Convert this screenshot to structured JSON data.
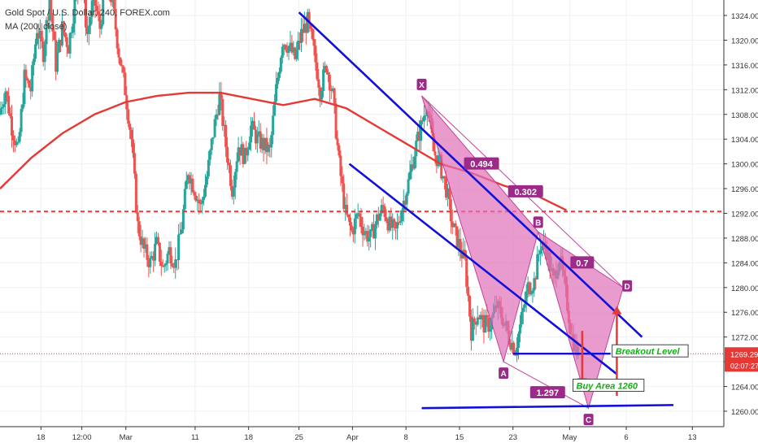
{
  "legend": {
    "title": "Gold Spot / U.S. Dollar, 240, FOREX.com",
    "indicator": "MA (200, close)"
  },
  "colors": {
    "up": "#26a69a",
    "down": "#ef5350",
    "ma": "#e53935",
    "channel": "#1010d8",
    "pattern_fill": "#e070b8",
    "pattern_label": "#9c2a88",
    "hline": "#e53935",
    "price_tag": "#e53935",
    "green_text": "#11b011"
  },
  "chart_data": {
    "type": "candlestick",
    "symbol": "Gold Spot / U.S. Dollar",
    "timeframe": "240",
    "ylim": [
      1257.5,
      1326.5
    ],
    "y_ticks": [
      1260,
      1264,
      1268,
      1272,
      1276,
      1280,
      1284,
      1288,
      1292,
      1296,
      1300,
      1304,
      1308,
      1312,
      1316,
      1320,
      1324
    ],
    "x_range": [
      0,
      115
    ],
    "x_ticks": [
      {
        "x": 6.5,
        "label": "18"
      },
      {
        "x": 13,
        "label": "12:00"
      },
      {
        "x": 20,
        "label": "Mar"
      },
      {
        "x": 31,
        "label": "11"
      },
      {
        "x": 39.5,
        "label": "18"
      },
      {
        "x": 47.5,
        "label": "25"
      },
      {
        "x": 56,
        "label": "Apr"
      },
      {
        "x": 64.5,
        "label": "8"
      },
      {
        "x": 73,
        "label": "15"
      },
      {
        "x": 81.5,
        "label": "23"
      },
      {
        "x": 90.5,
        "label": "May"
      },
      {
        "x": 99.5,
        "label": "6"
      },
      {
        "x": 110,
        "label": "13"
      }
    ],
    "price_path": [
      [
        0,
        1308
      ],
      [
        1,
        1312
      ],
      [
        2,
        1306
      ],
      [
        3,
        1302
      ],
      [
        4,
        1314
      ],
      [
        5,
        1312
      ],
      [
        6,
        1322
      ],
      [
        7,
        1318
      ],
      [
        8,
        1327
      ],
      [
        9,
        1316
      ],
      [
        10,
        1322
      ],
      [
        11,
        1319
      ],
      [
        12,
        1326
      ],
      [
        13,
        1330
      ],
      [
        14,
        1321
      ],
      [
        15,
        1327
      ],
      [
        16,
        1322
      ],
      [
        17,
        1330
      ],
      [
        18,
        1326
      ],
      [
        19,
        1318
      ],
      [
        20,
        1312
      ],
      [
        21,
        1304
      ],
      [
        22,
        1290
      ],
      [
        23,
        1286
      ],
      [
        24,
        1284
      ],
      [
        25,
        1287
      ],
      [
        26,
        1283
      ],
      [
        27,
        1286
      ],
      [
        28,
        1284
      ],
      [
        29,
        1290
      ],
      [
        30,
        1299
      ],
      [
        31,
        1296
      ],
      [
        32,
        1293
      ],
      [
        33,
        1298
      ],
      [
        34,
        1305
      ],
      [
        35,
        1311
      ],
      [
        36,
        1303
      ],
      [
        37,
        1296
      ],
      [
        38,
        1303
      ],
      [
        39,
        1301
      ],
      [
        40,
        1306
      ],
      [
        41,
        1304
      ],
      [
        42,
        1303
      ],
      [
        43,
        1302
      ],
      [
        44,
        1312
      ],
      [
        45,
        1320
      ],
      [
        46,
        1319
      ],
      [
        47,
        1317
      ],
      [
        48,
        1321
      ],
      [
        49,
        1323
      ],
      [
        50,
        1318
      ],
      [
        51,
        1312
      ],
      [
        52,
        1316
      ],
      [
        53,
        1311
      ],
      [
        54,
        1300
      ],
      [
        55,
        1292
      ],
      [
        56,
        1289
      ],
      [
        57,
        1292
      ],
      [
        58,
        1289
      ],
      [
        59,
        1288
      ],
      [
        60,
        1291
      ],
      [
        61,
        1293
      ],
      [
        62,
        1290
      ],
      [
        63,
        1289
      ],
      [
        64,
        1293
      ],
      [
        65,
        1297
      ],
      [
        66,
        1302
      ],
      [
        67,
        1306
      ],
      [
        68,
        1310
      ],
      [
        69,
        1302
      ],
      [
        70,
        1300
      ],
      [
        71,
        1296
      ],
      [
        72,
        1290
      ],
      [
        73,
        1287
      ],
      [
        74,
        1284
      ],
      [
        75,
        1273
      ],
      [
        76,
        1276
      ],
      [
        77,
        1274
      ],
      [
        78,
        1274
      ],
      [
        79,
        1277
      ],
      [
        80,
        1275
      ],
      [
        81,
        1272
      ],
      [
        82,
        1270
      ],
      [
        83,
        1275
      ],
      [
        84,
        1280
      ],
      [
        85,
        1281
      ],
      [
        86,
        1287
      ],
      [
        87,
        1286
      ],
      [
        88,
        1281
      ],
      [
        89,
        1285
      ],
      [
        90,
        1279
      ],
      [
        91,
        1272
      ],
      [
        92,
        1269
      ]
    ],
    "ma200": [
      [
        0,
        1296
      ],
      [
        5,
        1301
      ],
      [
        10,
        1305
      ],
      [
        15,
        1308
      ],
      [
        20,
        1310
      ],
      [
        25,
        1311
      ],
      [
        30,
        1311.5
      ],
      [
        35,
        1311.5
      ],
      [
        40,
        1310.5
      ],
      [
        45,
        1309.5
      ],
      [
        50,
        1310.5
      ],
      [
        55,
        1309
      ],
      [
        60,
        1306
      ],
      [
        65,
        1303
      ],
      [
        70,
        1300
      ],
      [
        75,
        1298.5
      ],
      [
        80,
        1296.5
      ],
      [
        85,
        1295
      ],
      [
        90,
        1292.5
      ]
    ],
    "red_level": 1292.3,
    "current_price": {
      "value": 1269.29,
      "label": "1269.29",
      "countdown": "02:07:27"
    },
    "channels": [
      {
        "from": [
          47.5,
          1324.5
        ],
        "to": [
          102,
          1272
        ]
      },
      {
        "from": [
          55.5,
          1300
        ],
        "to": [
          98,
          1266
        ]
      }
    ],
    "support_line": {
      "from": [
        67,
        1260.5
      ],
      "to": [
        107,
        1261
      ],
      "label": "Buy Area 1260"
    },
    "breakout_line": {
      "from": [
        81.5,
        1269.3
      ],
      "to": [
        97,
        1269.3
      ],
      "label": "Breakout Level"
    },
    "harmonic": {
      "points": [
        {
          "name": "X",
          "x": 67,
          "price": 1311
        },
        {
          "name": "A",
          "x": 80,
          "price": 1268
        },
        {
          "name": "B",
          "x": 85.5,
          "price": 1289
        },
        {
          "name": "C",
          "x": 93.5,
          "price": 1260.5
        },
        {
          "name": "D",
          "x": 99,
          "price": 1280
        }
      ],
      "ratios": [
        {
          "label": "0.494",
          "x": 76.5,
          "price": 1300
        },
        {
          "label": "0.302",
          "x": 83.5,
          "price": 1295.5
        },
        {
          "label": "0.7",
          "x": 92.5,
          "price": 1284
        },
        {
          "label": "1.297",
          "x": 87,
          "price": 1263
        }
      ]
    },
    "arrows": [
      {
        "color": "down",
        "x": 92.5,
        "from": 1273,
        "to": 1264
      },
      {
        "color": "up",
        "x": 98,
        "from": 1262.5,
        "to": 1277
      }
    ]
  }
}
